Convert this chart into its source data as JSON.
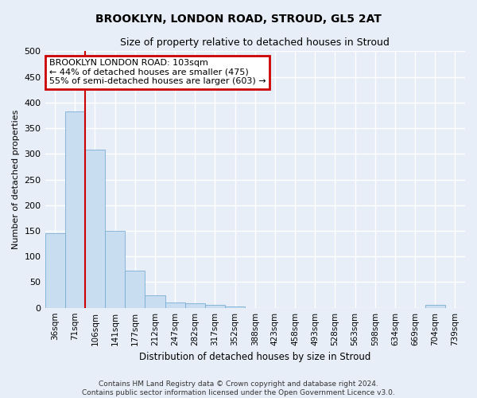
{
  "title": "BROOKLYN, LONDON ROAD, STROUD, GL5 2AT",
  "subtitle": "Size of property relative to detached houses in Stroud",
  "xlabel": "Distribution of detached houses by size in Stroud",
  "ylabel": "Number of detached properties",
  "footer1": "Contains HM Land Registry data © Crown copyright and database right 2024.",
  "footer2": "Contains public sector information licensed under the Open Government Licence v3.0.",
  "bar_labels": [
    "36sqm",
    "71sqm",
    "106sqm",
    "141sqm",
    "177sqm",
    "212sqm",
    "247sqm",
    "282sqm",
    "317sqm",
    "352sqm",
    "388sqm",
    "423sqm",
    "458sqm",
    "493sqm",
    "528sqm",
    "563sqm",
    "598sqm",
    "634sqm",
    "669sqm",
    "704sqm",
    "739sqm"
  ],
  "bar_values": [
    145,
    383,
    308,
    150,
    72,
    24,
    11,
    9,
    5,
    2,
    0,
    0,
    0,
    0,
    0,
    0,
    0,
    0,
    0,
    5,
    0
  ],
  "bar_color": "#c9ddf0",
  "bar_edge_color": "#7aafd4",
  "redline_x": 1.5,
  "annotation_title": "BROOKLYN LONDON ROAD: 103sqm",
  "annotation_line1": "← 44% of detached houses are smaller (475)",
  "annotation_line2": "55% of semi-detached houses are larger (603) →",
  "annotation_box_color": "#ffffff",
  "annotation_box_edge": "#cc0000",
  "redline_color": "#cc0000",
  "ylim": [
    0,
    500
  ],
  "yticks": [
    0,
    50,
    100,
    150,
    200,
    250,
    300,
    350,
    400,
    450,
    500
  ],
  "background_color": "#e8eef7",
  "plot_background": "#e8eef7",
  "grid_color": "#ffffff"
}
